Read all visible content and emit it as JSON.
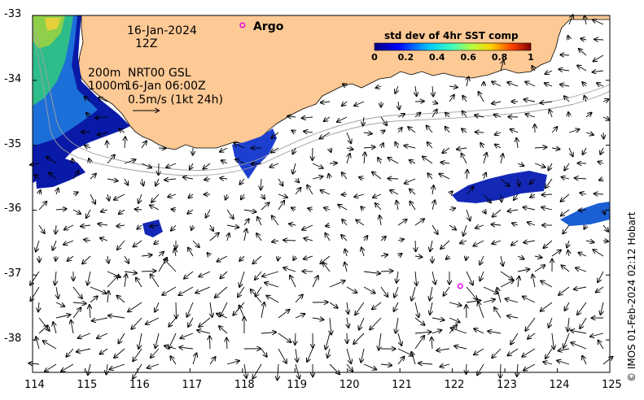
{
  "map": {
    "lon_ticks": [
      "114",
      "115",
      "116",
      "117",
      "118",
      "119",
      "120",
      "121",
      "122",
      "123",
      "124",
      "125"
    ],
    "lat_ticks": [
      "-33",
      "-34",
      "-35",
      "-36",
      "-37",
      "-38"
    ],
    "lon_range": [
      114,
      125
    ],
    "lat_range": [
      -38.5,
      -33
    ]
  },
  "annotations": {
    "date": "16-Jan-2024",
    "hour": "12Z",
    "isobath_200": "200m",
    "isobath_1000": "1000m",
    "nrt_label": "NRT00 GSL",
    "nrt_time": "16-Jan 06:00Z",
    "scale_label": "0.5m/s (1kt 24h)"
  },
  "legend": {
    "argo_label": "Argo",
    "colorbar_title": "std dev of 4hr SST comp",
    "colorbar_ticks": [
      "0",
      "0.2",
      "0.4",
      "0.6",
      "0.8",
      "1"
    ],
    "argo_color": "#e400e4",
    "land_color": "#fdc995"
  },
  "argo_floats": [
    {
      "lon": 118.0,
      "lat": -33.15
    },
    {
      "lon": 122.15,
      "lat": -37.17
    }
  ],
  "credit": "© IMOS 01-Feb-2024 02:12 Hobart"
}
